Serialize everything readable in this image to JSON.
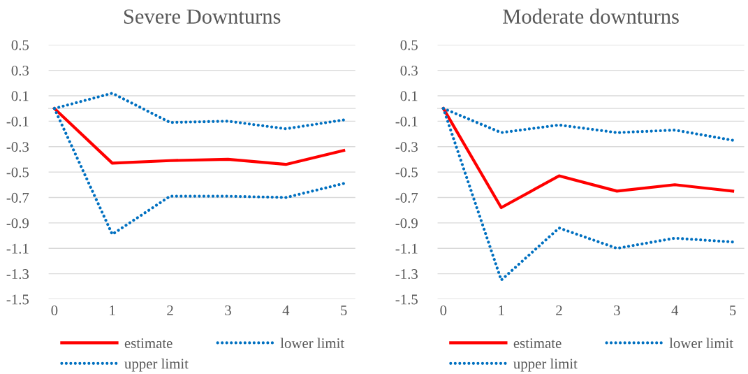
{
  "chart_data": [
    {
      "type": "line",
      "title": "Severe Downturns",
      "categories": [
        "0",
        "1",
        "2",
        "3",
        "4",
        "5"
      ],
      "ylim": [
        -1.5,
        0.5
      ],
      "yticks": [
        -1.5,
        -1.3,
        -1.1,
        -0.9,
        -0.7,
        -0.5,
        -0.3,
        -0.1,
        0.1,
        0.3,
        0.5
      ],
      "grid": "y",
      "legend": "bottom",
      "marker": "none",
      "series": [
        {
          "name": "estimate",
          "color": "#ff0000",
          "line_style": "solid",
          "values": [
            0.0,
            -0.43,
            -0.41,
            -0.4,
            -0.44,
            -0.33
          ]
        },
        {
          "name": "lower limit",
          "color": "#0070c0",
          "line_style": "dotted",
          "values": [
            0.0,
            -0.99,
            -0.69,
            -0.69,
            -0.7,
            -0.59
          ]
        },
        {
          "name": "upper limit",
          "color": "#0070c0",
          "line_style": "dotted",
          "values": [
            0.0,
            0.12,
            -0.11,
            -0.1,
            -0.16,
            -0.09
          ]
        }
      ]
    },
    {
      "type": "line",
      "title": "Moderate downturns",
      "categories": [
        "0",
        "1",
        "2",
        "3",
        "4",
        "5"
      ],
      "ylim": [
        -1.5,
        0.5
      ],
      "yticks": [
        -1.5,
        -1.3,
        -1.1,
        -0.9,
        -0.7,
        -0.5,
        -0.3,
        -0.1,
        0.1,
        0.3,
        0.5
      ],
      "grid": "y",
      "legend": "bottom",
      "marker": "none",
      "series": [
        {
          "name": "estimate",
          "color": "#ff0000",
          "line_style": "solid",
          "values": [
            0.0,
            -0.78,
            -0.53,
            -0.65,
            -0.6,
            -0.65
          ]
        },
        {
          "name": "lower limit",
          "color": "#0070c0",
          "line_style": "dotted",
          "values": [
            0.0,
            -1.35,
            -0.94,
            -1.1,
            -1.02,
            -1.05
          ]
        },
        {
          "name": "upper limit",
          "color": "#0070c0",
          "line_style": "dotted",
          "values": [
            0.0,
            -0.19,
            -0.13,
            -0.19,
            -0.17,
            -0.25
          ]
        }
      ]
    }
  ]
}
